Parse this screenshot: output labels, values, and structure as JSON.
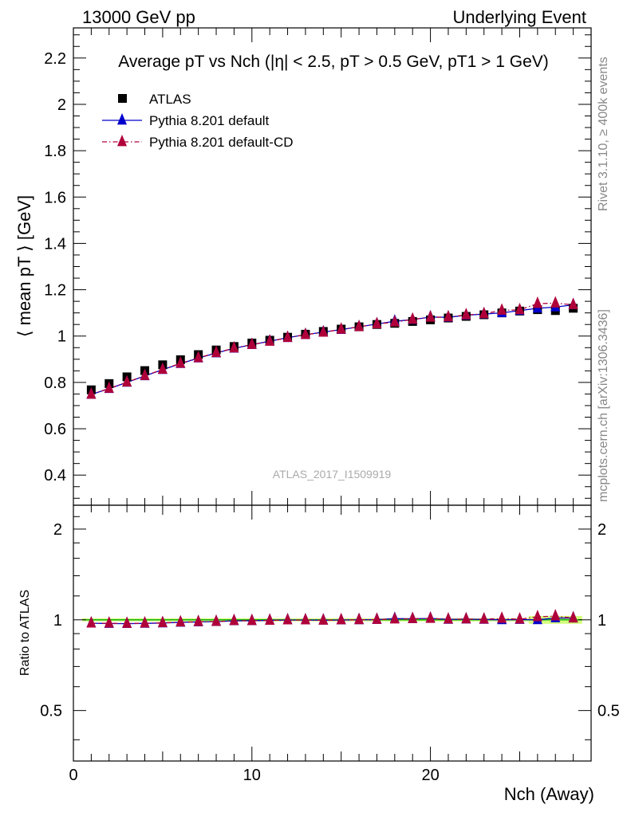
{
  "header": {
    "left": "13000 GeV pp",
    "right": "Underlying Event"
  },
  "side_text": {
    "rivet": "Rivet 3.1.10, ≥ 400k events",
    "source": "mcplots.cern.ch [arXiv:1306.3436]"
  },
  "chart_data": [
    {
      "type": "scatter",
      "title": "Average pT vs Nch (|η| < 2.5, pT > 0.5 GeV, pT1 > 1 GeV)",
      "ylabel": "⟨ mean pT ⟩ [GeV]",
      "xlabel": "Nch (Away)",
      "xlim": [
        0,
        29
      ],
      "ylim": [
        0.27,
        2.33
      ],
      "yticks": [
        "0.4",
        "0.6",
        "0.8",
        "1",
        "1.2",
        "1.4",
        "1.6",
        "1.8",
        "2",
        "2.2"
      ],
      "watermark": "ATLAS_2017_I1509919",
      "legend_position": "top-left",
      "x": [
        1,
        2,
        3,
        4,
        5,
        6,
        7,
        8,
        9,
        10,
        11,
        12,
        13,
        14,
        15,
        16,
        17,
        18,
        19,
        20,
        21,
        22,
        23,
        24,
        25,
        26,
        27,
        28
      ],
      "series": [
        {
          "name": "ATLAS",
          "marker": "square",
          "color": "#000000",
          "values": [
            0.768,
            0.795,
            0.824,
            0.851,
            0.876,
            0.898,
            0.92,
            0.94,
            0.955,
            0.97,
            0.982,
            0.995,
            1.008,
            1.02,
            1.03,
            1.04,
            1.05,
            1.055,
            1.063,
            1.07,
            1.078,
            1.085,
            1.092,
            1.1,
            1.108,
            1.114,
            1.11,
            1.12
          ]
        },
        {
          "name": "Pythia 8.201 default",
          "marker": "triangle",
          "line": "solid",
          "color": "#0000cc",
          "values": [
            0.748,
            0.773,
            0.8,
            0.828,
            0.855,
            0.881,
            0.905,
            0.927,
            0.947,
            0.963,
            0.978,
            0.993,
            1.006,
            1.017,
            1.028,
            1.04,
            1.052,
            1.064,
            1.071,
            1.082,
            1.081,
            1.09,
            1.095,
            1.1,
            1.11,
            1.12,
            1.125,
            1.135
          ]
        },
        {
          "name": "Pythia 8.201 default-CD",
          "marker": "triangle",
          "line": "dashdot",
          "color": "#b0003a",
          "values": [
            0.748,
            0.774,
            0.801,
            0.829,
            0.856,
            0.882,
            0.906,
            0.928,
            0.948,
            0.963,
            0.977,
            0.993,
            1.006,
            1.016,
            1.029,
            1.04,
            1.052,
            1.06,
            1.072,
            1.081,
            1.082,
            1.091,
            1.096,
            1.111,
            1.113,
            1.14,
            1.142,
            1.135
          ]
        }
      ]
    },
    {
      "type": "scatter",
      "ylabel": "Ratio to ATLAS",
      "xlabel": "Nch (Away)",
      "xlim": [
        0,
        29
      ],
      "ylim": [
        0.34,
        2.4
      ],
      "log_y": true,
      "yticks": [
        "0.5",
        "1",
        "2"
      ],
      "xticks": [
        "0",
        "10",
        "20"
      ],
      "reference_band": {
        "color": "#ccff66",
        "line_color": "#00aa00",
        "value": 1.0
      },
      "x": [
        1,
        2,
        3,
        4,
        5,
        6,
        7,
        8,
        9,
        10,
        11,
        12,
        13,
        14,
        15,
        16,
        17,
        18,
        19,
        20,
        21,
        22,
        23,
        24,
        25,
        26,
        27,
        28
      ],
      "series": [
        {
          "name": "Pythia 8.201 default",
          "values": [
            0.974,
            0.972,
            0.971,
            0.973,
            0.976,
            0.981,
            0.984,
            0.986,
            0.992,
            0.993,
            0.996,
            0.998,
            0.998,
            0.997,
            0.998,
            1.0,
            1.002,
            1.009,
            1.008,
            1.011,
            1.003,
            1.005,
            1.003,
            1.0,
            1.002,
            1.0,
            1.014,
            1.013
          ]
        },
        {
          "name": "Pythia 8.201 default-CD",
          "values": [
            0.974,
            0.974,
            0.972,
            0.974,
            0.977,
            0.982,
            0.985,
            0.987,
            0.993,
            0.993,
            0.995,
            0.998,
            0.998,
            0.996,
            0.999,
            1.0,
            1.002,
            1.005,
            1.008,
            1.01,
            1.004,
            1.006,
            1.004,
            1.01,
            1.004,
            1.023,
            1.029,
            1.013
          ]
        }
      ]
    }
  ]
}
